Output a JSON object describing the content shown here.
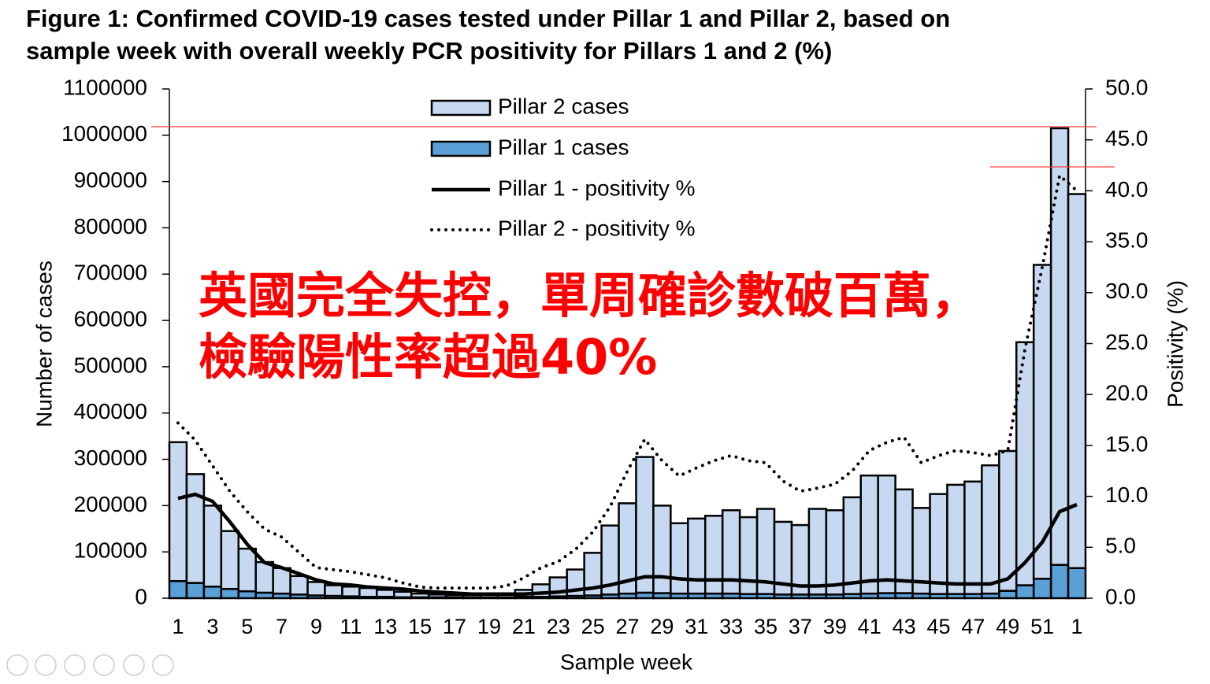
{
  "chart_data": {
    "type": "bar",
    "title": [
      "Figure 1: Confirmed COVID-19 cases tested under Pillar 1 and Pillar 2, based on",
      "sample week with overall weekly PCR positivity for Pillars 1 and 2 (%)"
    ],
    "annotation": [
      "英國完全失控，單周確診數破百萬，",
      "檢驗陽性率超過40%"
    ],
    "x_label": "Sample week",
    "y_label": "Number of cases",
    "y2_label": "Positivity (%)",
    "categories": [
      "1",
      null,
      "3",
      null,
      "5",
      null,
      "7",
      null,
      "9",
      null,
      "11",
      null,
      "13",
      null,
      "15",
      null,
      "17",
      null,
      "19",
      null,
      "21",
      null,
      "23",
      null,
      "25",
      null,
      "27",
      null,
      "29",
      null,
      "31",
      null,
      "33",
      null,
      "35",
      null,
      "37",
      null,
      "39",
      null,
      "41",
      null,
      "43",
      null,
      "45",
      null,
      "47",
      null,
      "49",
      null,
      "51",
      null,
      "1"
    ],
    "ylim": [
      0,
      1100000
    ],
    "yticks": [
      0,
      100000,
      200000,
      300000,
      400000,
      500000,
      600000,
      700000,
      800000,
      900000,
      1000000,
      1100000
    ],
    "y2lim": [
      0,
      50
    ],
    "y2ticks": [
      {
        "value": 0,
        "label": "0.0"
      },
      {
        "value": 5,
        "label": "5.0"
      },
      {
        "value": 10,
        "label": "10.0"
      },
      {
        "value": 15,
        "label": "15.0"
      },
      {
        "value": 20,
        "label": "20.0"
      },
      {
        "value": 25,
        "label": "25.0"
      },
      {
        "value": 30,
        "label": "30.0"
      },
      {
        "value": 35,
        "label": "35.0"
      },
      {
        "value": 40,
        "label": "40.0"
      },
      {
        "value": 45,
        "label": "45.0"
      },
      {
        "value": 50,
        "label": "50.0"
      }
    ],
    "series": [
      {
        "name": "Pillar 2 cases",
        "type": "bar",
        "color": "#c6d9f1",
        "values": [
          300000,
          235000,
          175000,
          125000,
          92000,
          66000,
          55000,
          40000,
          29000,
          23000,
          21000,
          19000,
          15000,
          12000,
          8000,
          6000,
          5000,
          5000,
          6000,
          8000,
          15000,
          27000,
          41000,
          57000,
          92000,
          149000,
          195000,
          293000,
          189000,
          152000,
          162000,
          168000,
          180000,
          166000,
          184000,
          157000,
          150000,
          185000,
          182000,
          209000,
          255000,
          254000,
          224000,
          185000,
          216000,
          236000,
          243000,
          277000,
          302000,
          525000,
          678000,
          943000,
          808000
        ]
      },
      {
        "name": "Pillar 1 cases",
        "type": "bar",
        "color": "#5a9fd6",
        "values": [
          37000,
          33000,
          25000,
          20000,
          15000,
          12000,
          10000,
          8000,
          6000,
          5000,
          4000,
          3000,
          3000,
          2000,
          2000,
          2000,
          2000,
          2000,
          2000,
          2000,
          3000,
          3000,
          4000,
          5000,
          6000,
          8000,
          10000,
          12000,
          11000,
          10000,
          10000,
          10000,
          10000,
          9000,
          9000,
          8000,
          8000,
          8000,
          8000,
          9000,
          10000,
          11000,
          11000,
          10000,
          9000,
          9000,
          9000,
          10000,
          16000,
          28000,
          42000,
          72000,
          65000
        ]
      },
      {
        "name": "Pillar 1 - positivity %",
        "type": "line",
        "axis": "y2",
        "color": "#000000",
        "values": [
          9.8,
          10.2,
          9.5,
          7.5,
          5.3,
          3.5,
          3.0,
          2.4,
          1.8,
          1.4,
          1.3,
          1.1,
          1.0,
          0.9,
          0.7,
          0.6,
          0.5,
          0.4,
          0.4,
          0.4,
          0.4,
          0.5,
          0.6,
          0.8,
          1.0,
          1.3,
          1.7,
          2.1,
          2.1,
          1.9,
          1.8,
          1.8,
          1.8,
          1.7,
          1.6,
          1.4,
          1.2,
          1.2,
          1.3,
          1.5,
          1.7,
          1.8,
          1.7,
          1.6,
          1.5,
          1.4,
          1.4,
          1.4,
          1.9,
          3.5,
          5.5,
          8.5,
          9.2
        ]
      },
      {
        "name": "Pillar 2 - positivity %",
        "type": "line",
        "dash": true,
        "axis": "y2",
        "color": "#000000",
        "values": [
          17.2,
          15.5,
          13.0,
          10.5,
          8.5,
          6.8,
          6.0,
          4.5,
          3.0,
          2.8,
          2.6,
          2.3,
          2.0,
          1.5,
          1.1,
          1.0,
          1.0,
          1.0,
          1.0,
          1.2,
          2.0,
          3.0,
          3.6,
          4.8,
          6.5,
          9.0,
          12.5,
          15.6,
          13.5,
          12.0,
          12.8,
          13.5,
          14.0,
          13.5,
          13.3,
          11.5,
          10.5,
          10.8,
          11.2,
          12.5,
          14.5,
          15.3,
          15.8,
          13.3,
          14.0,
          14.5,
          14.3,
          14.0,
          14.5,
          24.5,
          32.5,
          41.5,
          40.0
        ]
      }
    ]
  }
}
